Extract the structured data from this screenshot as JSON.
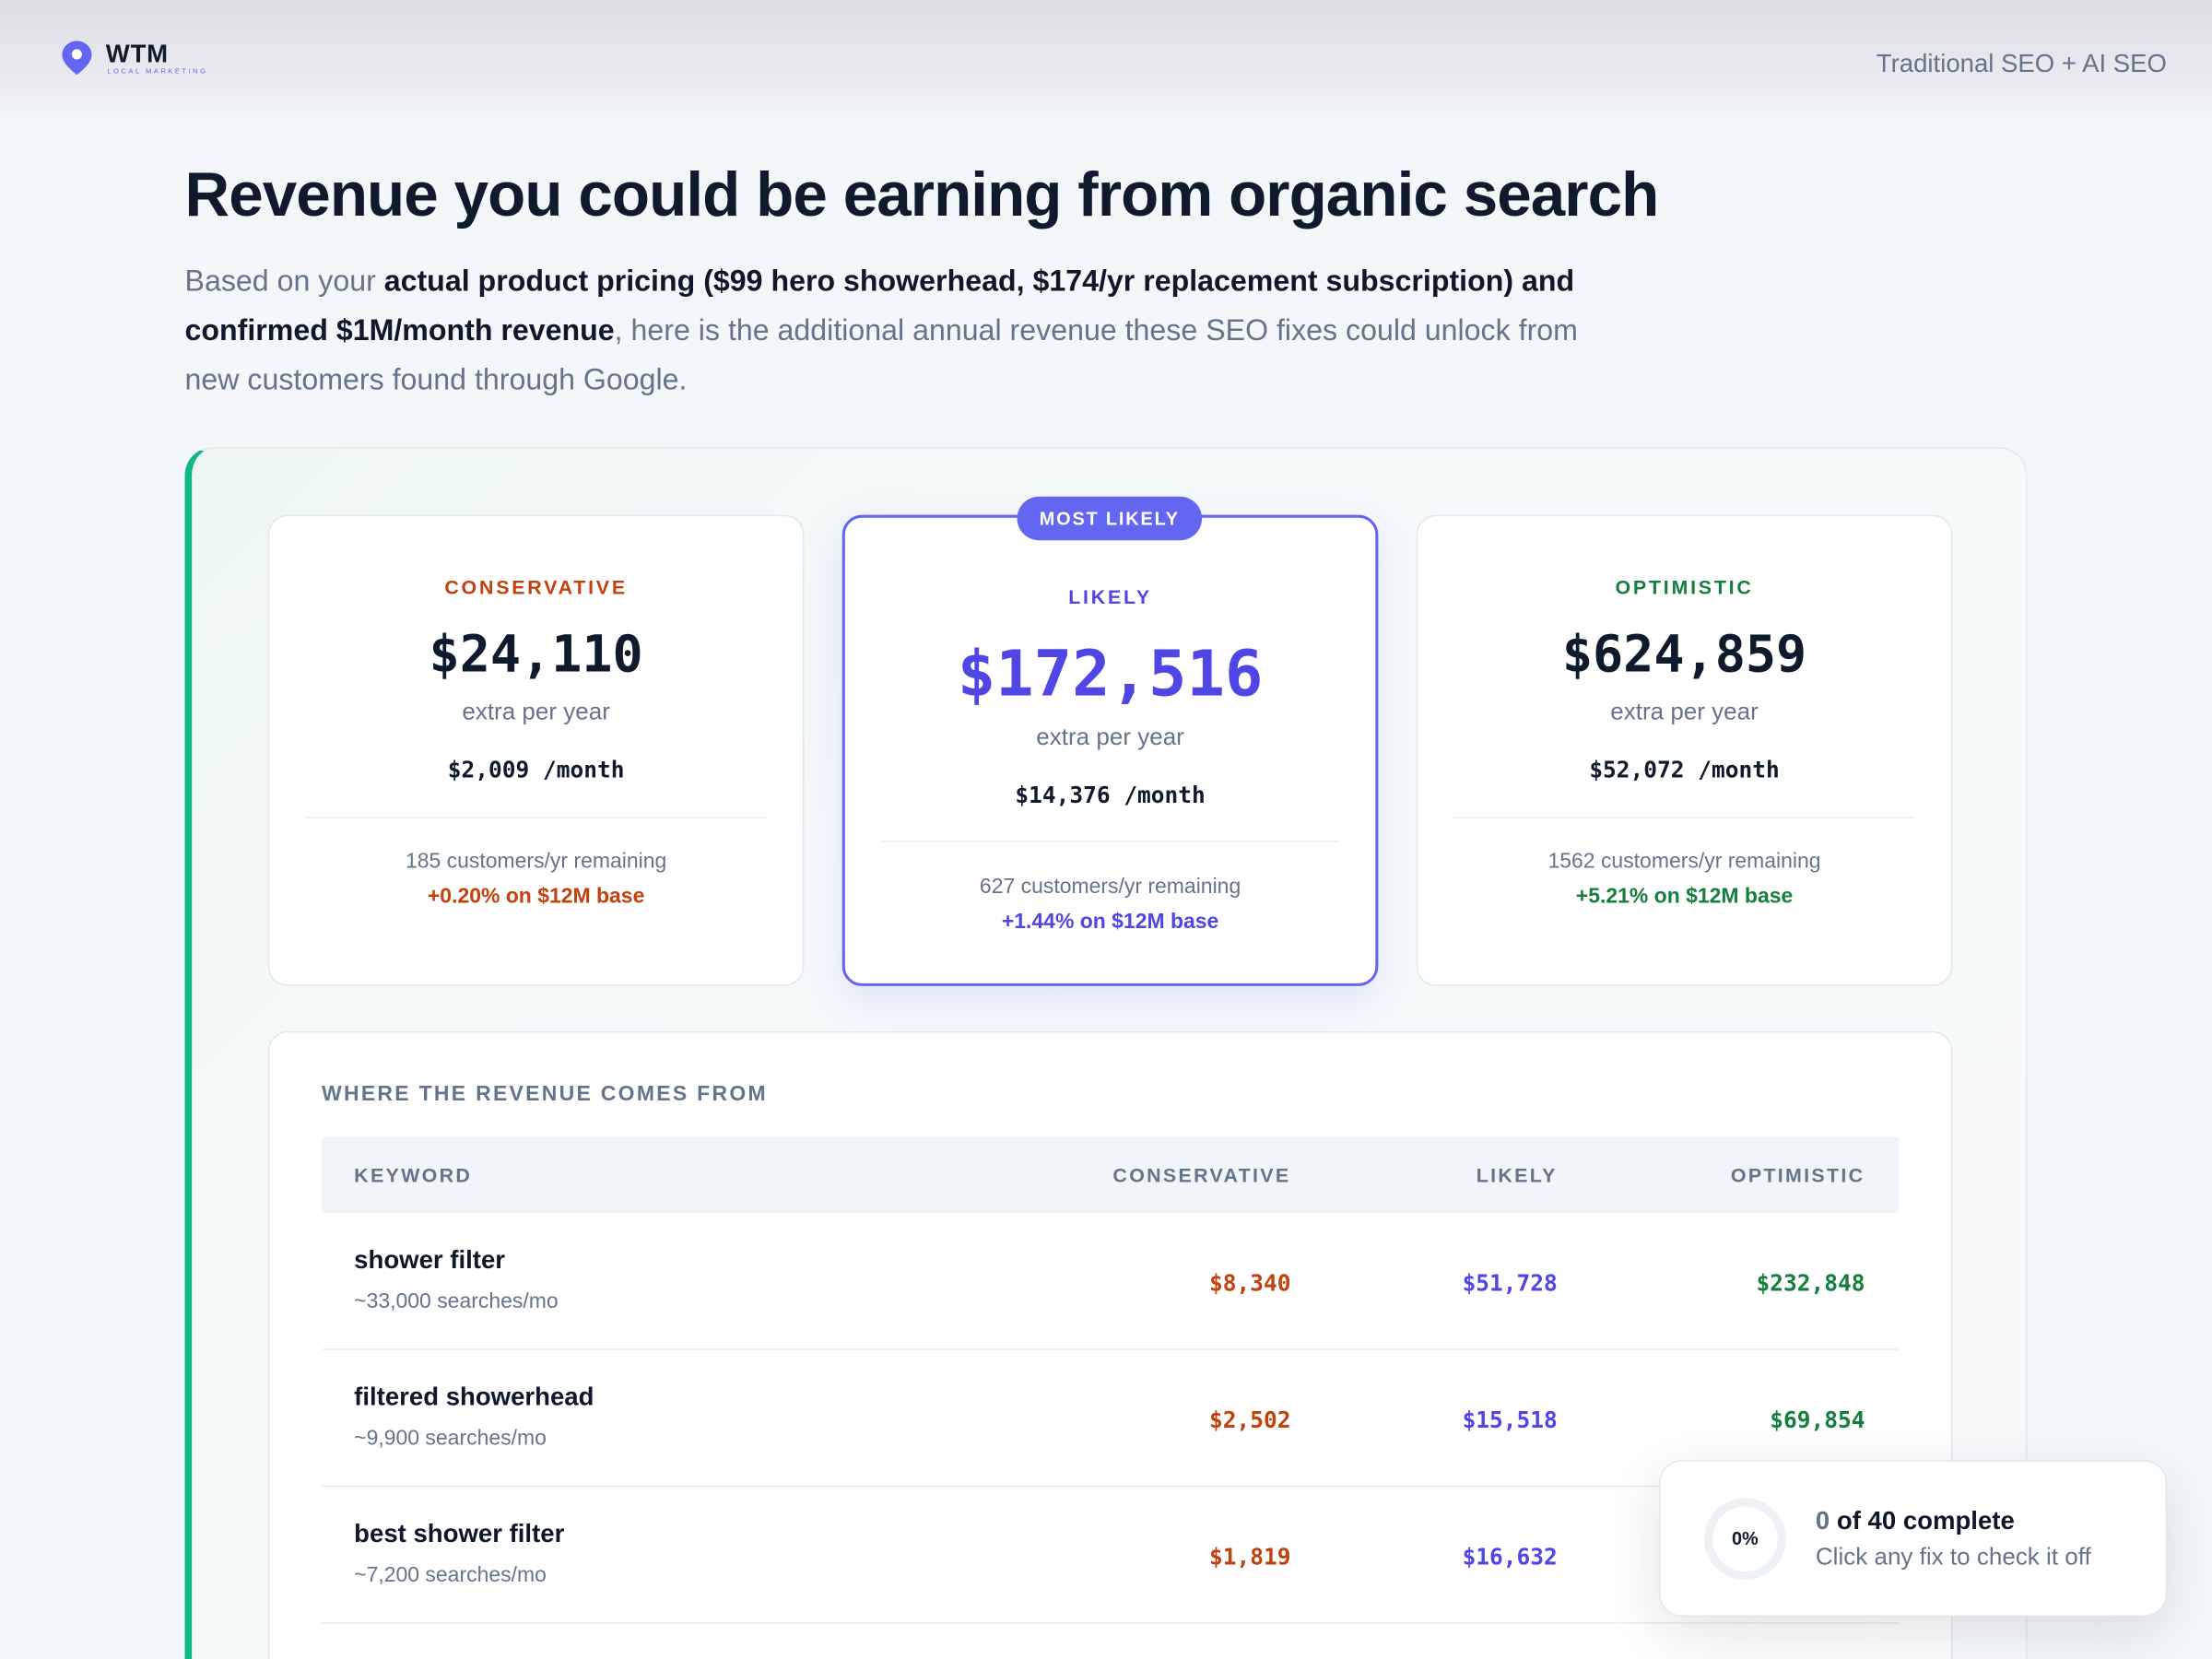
{
  "header": {
    "logo_main": "WTM",
    "logo_sub": "LOCAL MARKETING",
    "right_text": "Traditional SEO + AI SEO"
  },
  "page": {
    "title": "Revenue you could be earning from organic search",
    "intro": {
      "p1": "Based on your ",
      "b1": "actual product pricing ($99 hero showerhead, $174/yr replacement subscription) and confirmed $1M/month revenue",
      "p2": ", here is the additional annual revenue these SEO fixes could unlock from new customers found through Google."
    }
  },
  "colors": {
    "conservative": "#c2410c",
    "likely": "#4f46e5",
    "optimistic": "#15803d",
    "accent_bar": "#10b981"
  },
  "scenarios": [
    {
      "label": "CONSERVATIVE",
      "amount": "$24,110",
      "extra": "extra per year",
      "month": "$2,009 /month",
      "customers": "185 customers/yr remaining",
      "base": "+0.20% on $12M base"
    },
    {
      "badge": "MOST LIKELY",
      "label": "LIKELY",
      "amount": "$172,516",
      "extra": "extra per year",
      "month": "$14,376 /month",
      "customers": "627 customers/yr remaining",
      "base": "+1.44% on $12M base"
    },
    {
      "label": "OPTIMISTIC",
      "amount": "$624,859",
      "extra": "extra per year",
      "month": "$52,072 /month",
      "customers": "1562 customers/yr remaining",
      "base": "+5.21% on $12M base"
    }
  ],
  "table": {
    "title": "WHERE THE REVENUE COMES FROM",
    "columns": [
      "KEYWORD",
      "CONSERVATIVE",
      "LIKELY",
      "OPTIMISTIC"
    ],
    "rows": [
      {
        "keyword": "shower filter",
        "volume": "~33,000 searches/mo",
        "conservative": "$8,340",
        "likely": "$51,728",
        "optimistic": "$232,848"
      },
      {
        "keyword": "filtered showerhead",
        "volume": "~9,900 searches/mo",
        "conservative": "$2,502",
        "likely": "$15,518",
        "optimistic": "$69,854"
      },
      {
        "keyword": "best shower filter",
        "volume": "~7,200 searches/mo",
        "conservative": "$1,819",
        "likely": "$16,632"
      }
    ]
  },
  "progress": {
    "percent_label": "0%",
    "done": "0",
    "title_rest": " of 40 complete",
    "subtitle": "Click any fix to check it off",
    "fraction": 0
  }
}
